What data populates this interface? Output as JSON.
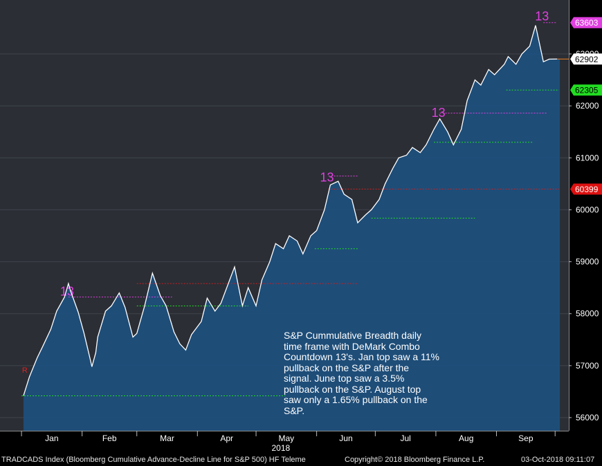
{
  "chart_data": {
    "type": "area",
    "title": "",
    "xlabel": "2018",
    "ylabel": "",
    "ylim": [
      55900,
      64100
    ],
    "y_ticks": [
      56000,
      57000,
      58000,
      59000,
      60000,
      61000,
      62000,
      63000
    ],
    "month_labels": [
      "Jan",
      "Feb",
      "Mar",
      "Apr",
      "May",
      "Jun",
      "Jul",
      "Aug",
      "Sep"
    ],
    "series": [
      {
        "x": [
          "2018-01-02",
          "2018-01-05",
          "2018-01-09",
          "2018-01-12",
          "2018-01-16",
          "2018-01-19",
          "2018-01-23",
          "2018-01-25",
          "2018-01-26",
          "2018-01-30",
          "2018-02-02",
          "2018-02-05",
          "2018-02-06",
          "2018-02-08",
          "2018-02-09",
          "2018-02-13",
          "2018-02-16",
          "2018-02-20",
          "2018-02-23",
          "2018-02-27",
          "2018-03-01",
          "2018-03-05",
          "2018-03-09",
          "2018-03-13",
          "2018-03-16",
          "2018-03-20",
          "2018-03-23",
          "2018-03-26",
          "2018-03-29",
          "2018-04-03",
          "2018-04-06",
          "2018-04-10",
          "2018-04-13",
          "2018-04-17",
          "2018-04-20",
          "2018-04-24",
          "2018-04-27",
          "2018-05-01",
          "2018-05-04",
          "2018-05-08",
          "2018-05-11",
          "2018-05-15",
          "2018-05-18",
          "2018-05-22",
          "2018-05-25",
          "2018-05-29",
          "2018-06-01",
          "2018-06-05",
          "2018-06-08",
          "2018-06-12",
          "2018-06-15",
          "2018-06-19",
          "2018-06-22",
          "2018-06-26",
          "2018-06-29",
          "2018-07-03",
          "2018-07-06",
          "2018-07-10",
          "2018-07-13",
          "2018-07-17",
          "2018-07-20",
          "2018-07-24",
          "2018-07-27",
          "2018-07-31",
          "2018-08-03",
          "2018-08-07",
          "2018-08-10",
          "2018-08-14",
          "2018-08-17",
          "2018-08-21",
          "2018-08-24",
          "2018-08-28",
          "2018-08-31",
          "2018-09-05",
          "2018-09-07",
          "2018-09-11",
          "2018-09-14",
          "2018-09-18",
          "2018-09-21",
          "2018-09-25",
          "2018-09-28",
          "2018-10-02"
        ],
        "values": [
          56420,
          56780,
          57150,
          57380,
          57700,
          58050,
          58320,
          58580,
          58450,
          58030,
          57620,
          57150,
          56980,
          57250,
          57550,
          58050,
          58150,
          58400,
          58120,
          57550,
          57620,
          58150,
          58780,
          58350,
          58150,
          57650,
          57420,
          57300,
          57600,
          57850,
          58300,
          58050,
          58200,
          58600,
          58900,
          58150,
          58500,
          58150,
          58650,
          59000,
          59350,
          59250,
          59500,
          59400,
          59150,
          59500,
          59600,
          60000,
          60480,
          60550,
          60300,
          60200,
          59750,
          59900,
          60000,
          60200,
          60500,
          60800,
          61000,
          61050,
          61200,
          61100,
          61250,
          61550,
          61750,
          61500,
          61250,
          61550,
          62100,
          62500,
          62400,
          62700,
          62600,
          62800,
          62950,
          62800,
          63000,
          63150,
          63550,
          62850,
          62900,
          62902
        ],
        "line_color": "#ffffff",
        "fill_color": "#1d4f7c"
      }
    ],
    "level_tags": [
      {
        "label": "63603",
        "value": 63603,
        "color": "#e040e0"
      },
      {
        "label": "62902",
        "value": 62902,
        "color": "#ffffff"
      },
      {
        "label": "62305",
        "value": 62305,
        "color": "#22dd22"
      },
      {
        "label": "60399",
        "value": 60399,
        "color": "#dd1111"
      }
    ],
    "countdown_markers": [
      {
        "label": "13",
        "x": "2018-01-25",
        "value": 58400,
        "line_until": "2018-03-19",
        "line_value": 58320
      },
      {
        "label": "13",
        "x": "2018-06-07",
        "value": 60600,
        "line_until": "2018-06-22",
        "line_value": 60650
      },
      {
        "label": "13",
        "x": "2018-08-03",
        "value": 61840,
        "line_until": "2018-09-27",
        "line_value": 61860
      },
      {
        "label": "13",
        "x": "2018-09-25",
        "value": 63700,
        "line_until": "2018-10-02",
        "line_value": 63603
      }
    ],
    "support_lines": [
      {
        "x0": "2018-01-01",
        "x1": "2018-05-16",
        "value": 56420
      },
      {
        "x0": "2018-03-01",
        "x1": "2018-04-27",
        "value": 58150
      },
      {
        "x0": "2018-05-31",
        "x1": "2018-06-22",
        "value": 59250
      },
      {
        "x0": "2018-06-29",
        "x1": "2018-08-21",
        "value": 59840
      },
      {
        "x0": "2018-07-31",
        "x1": "2018-09-20",
        "value": 61300
      },
      {
        "x0": "2018-09-06",
        "x1": "2018-10-03",
        "value": 62305
      }
    ],
    "resistance_lines": [
      {
        "x0": "2018-03-01",
        "x1": "2018-06-22",
        "value": 58580
      },
      {
        "x0": "2018-06-07",
        "x1": "2018-10-03",
        "value": 60399
      }
    ],
    "r_marker": {
      "label": "R",
      "x": "2018-01-02",
      "value": 56650
    },
    "annotation": "S&P Cummulative Breadth daily\ntime frame with DeMark Combo\nCountdown 13's.  Jan top saw a 11%\npullback on the S&P after the\nsignal. June top saw a 3.5%\npullback on the S&P.  August top\nsaw only a 1.65% pullback on the\nS&P."
  },
  "footer": {
    "left": "TRADCADS Index (Bloomberg Cumulative Advance-Decline Line for S&P 500) HF Teleme",
    "center": "Copyright© 2018 Bloomberg Finance L.P.",
    "right": "03-Oct-2018 09:11:07"
  }
}
